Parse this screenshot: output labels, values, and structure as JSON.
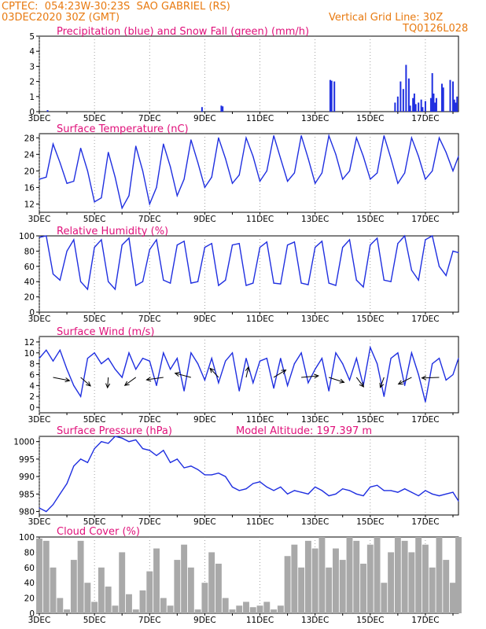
{
  "header": {
    "line1": "CPTEC:  054:23W-30:23S  SAO GABRIEL (RS)",
    "line2": "03DEC2020 30Z (GMT)",
    "grid_note": "Vertical Grid Line: 30Z",
    "code": "TQ0126L028"
  },
  "colors": {
    "header_text": "#e87a10",
    "panel_title": "#e0107a",
    "line": "#1f2fe0",
    "snow": "#10a010",
    "cloud": "#a9a9a9",
    "grid": "#8a8a8a",
    "wind_arrow": "#000000"
  },
  "x_axis": {
    "tick_labels": [
      "3DEC",
      "5DEC",
      "7DEC",
      "9DEC",
      "11DEC",
      "13DEC",
      "15DEC",
      "17DEC"
    ],
    "tick_days": [
      0,
      2,
      4,
      6,
      8,
      10,
      12,
      14
    ],
    "range_days": [
      0,
      15.2
    ]
  },
  "chart_data": [
    {
      "id": "precip",
      "type": "bar",
      "title": "Precipitation (blue) and Snow Fall (green) (mm/h)",
      "ylim": [
        0,
        5
      ],
      "yticks": [
        0,
        1,
        2,
        3,
        4,
        5
      ],
      "series": [
        {
          "name": "Precipitation",
          "color": "#1f2fe0",
          "x": [
            0.3,
            5.9,
            6.6,
            6.65,
            10.55,
            10.6,
            10.7,
            12.9,
            13.0,
            13.1,
            13.2,
            13.3,
            13.4,
            13.45,
            13.55,
            13.6,
            13.65,
            13.75,
            13.85,
            13.9,
            14.0,
            14.2,
            14.25,
            14.3,
            14.35,
            14.4,
            14.6,
            14.65,
            14.9,
            15.0,
            15.05,
            15.1,
            15.15
          ],
          "values": [
            0.1,
            0.3,
            0.4,
            0.35,
            2.1,
            2.05,
            2.0,
            0.6,
            1.0,
            2.0,
            1.5,
            3.1,
            2.2,
            0.4,
            0.9,
            1.2,
            0.5,
            0.6,
            0.8,
            0.3,
            0.7,
            0.9,
            2.55,
            1.2,
            0.6,
            0.9,
            1.85,
            1.6,
            2.1,
            2.0,
            0.8,
            0.6,
            1.0
          ]
        },
        {
          "name": "Snow Fall",
          "color": "#10a010",
          "x": [],
          "values": []
        }
      ]
    },
    {
      "id": "temperature",
      "type": "line",
      "title": "Surface Temperature (nC)",
      "ylim": [
        10,
        29
      ],
      "yticks": [
        12,
        16,
        20,
        24,
        28
      ],
      "x": [
        0,
        0.25,
        0.5,
        0.75,
        1.0,
        1.25,
        1.5,
        1.75,
        2.0,
        2.25,
        2.5,
        2.75,
        3.0,
        3.25,
        3.5,
        3.75,
        4.0,
        4.25,
        4.5,
        4.75,
        5.0,
        5.25,
        5.5,
        5.75,
        6.0,
        6.25,
        6.5,
        6.75,
        7.0,
        7.25,
        7.5,
        7.75,
        8.0,
        8.25,
        8.5,
        8.75,
        9.0,
        9.25,
        9.5,
        9.75,
        10.0,
        10.25,
        10.5,
        10.75,
        11.0,
        11.25,
        11.5,
        11.75,
        12.0,
        12.25,
        12.5,
        12.75,
        13.0,
        13.25,
        13.5,
        13.75,
        14.0,
        14.25,
        14.5,
        14.75,
        15.0,
        15.2
      ],
      "values": [
        18,
        18.5,
        26.5,
        22,
        17,
        17.5,
        25.5,
        20,
        12.5,
        13.5,
        24.5,
        18.5,
        11,
        14,
        26,
        20,
        12,
        16,
        26.5,
        21,
        14,
        18,
        27.5,
        22,
        16,
        18.5,
        28,
        23,
        17,
        19,
        28,
        23.5,
        17.5,
        20,
        28.5,
        23,
        17.5,
        19.5,
        28.5,
        23,
        17,
        19.5,
        28.5,
        24,
        18,
        20,
        28,
        23.5,
        18,
        19.5,
        28.5,
        23,
        17,
        19.5,
        28,
        23.5,
        18,
        20,
        28,
        24.5,
        20,
        23.5
      ]
    },
    {
      "id": "humidity",
      "type": "line",
      "title": "Relative Humidity (%)",
      "ylim": [
        0,
        100
      ],
      "yticks": [
        0,
        20,
        40,
        60,
        80,
        100
      ],
      "x": [
        0,
        0.25,
        0.5,
        0.75,
        1.0,
        1.25,
        1.5,
        1.75,
        2.0,
        2.25,
        2.5,
        2.75,
        3.0,
        3.25,
        3.5,
        3.75,
        4.0,
        4.25,
        4.5,
        4.75,
        5.0,
        5.25,
        5.5,
        5.75,
        6.0,
        6.25,
        6.5,
        6.75,
        7.0,
        7.25,
        7.5,
        7.75,
        8.0,
        8.25,
        8.5,
        8.75,
        9.0,
        9.25,
        9.5,
        9.75,
        10.0,
        10.25,
        10.5,
        10.75,
        11.0,
        11.25,
        11.5,
        11.75,
        12.0,
        12.25,
        12.5,
        12.75,
        13.0,
        13.25,
        13.5,
        13.75,
        14.0,
        14.25,
        14.5,
        14.75,
        15.0,
        15.2
      ],
      "values": [
        98,
        100,
        50,
        42,
        80,
        95,
        40,
        30,
        85,
        95,
        40,
        30,
        88,
        97,
        35,
        40,
        82,
        95,
        42,
        38,
        88,
        93,
        38,
        40,
        85,
        90,
        35,
        42,
        88,
        90,
        35,
        38,
        85,
        92,
        38,
        37,
        88,
        92,
        38,
        36,
        85,
        93,
        38,
        35,
        85,
        95,
        42,
        33,
        88,
        97,
        42,
        40,
        90,
        100,
        55,
        42,
        95,
        100,
        60,
        48,
        80,
        78
      ]
    },
    {
      "id": "wind",
      "type": "line",
      "title": "Surface Wind (m/s)",
      "ylim": [
        -1,
        13
      ],
      "yticks": [
        0,
        2,
        4,
        6,
        8,
        10,
        12
      ],
      "x": [
        0,
        0.25,
        0.5,
        0.75,
        1.0,
        1.25,
        1.5,
        1.75,
        2.0,
        2.25,
        2.5,
        2.75,
        3.0,
        3.25,
        3.5,
        3.75,
        4.0,
        4.25,
        4.5,
        4.75,
        5.0,
        5.25,
        5.5,
        5.75,
        6.0,
        6.25,
        6.5,
        6.75,
        7.0,
        7.25,
        7.5,
        7.75,
        8.0,
        8.25,
        8.5,
        8.75,
        9.0,
        9.25,
        9.5,
        9.75,
        10.0,
        10.25,
        10.5,
        10.75,
        11.0,
        11.25,
        11.5,
        11.75,
        12.0,
        12.25,
        12.5,
        12.75,
        13.0,
        13.25,
        13.5,
        13.75,
        14.0,
        14.25,
        14.5,
        14.75,
        15.0,
        15.2
      ],
      "values": [
        9,
        10.5,
        8.5,
        10.5,
        7,
        4,
        2,
        9,
        10,
        8,
        9,
        7,
        5.5,
        10,
        7,
        9,
        8.5,
        4,
        10,
        7,
        9,
        3,
        10,
        8,
        5,
        9,
        4.5,
        8.5,
        10,
        3,
        9,
        4.5,
        8.5,
        9,
        3.5,
        9,
        4,
        8,
        10,
        4.5,
        7,
        9,
        3,
        10,
        8,
        5,
        9,
        4,
        11,
        8,
        2,
        9,
        10,
        4,
        10,
        6,
        1,
        8,
        9,
        5,
        6,
        9
      ],
      "arrows_shown": true
    },
    {
      "id": "pressure",
      "type": "line",
      "title": "Surface Pressure (hPa)",
      "ylim": [
        979,
        1001.5
      ],
      "yticks": [
        980,
        985,
        990,
        995,
        1000
      ],
      "x": [
        0,
        0.25,
        0.5,
        0.75,
        1.0,
        1.25,
        1.5,
        1.75,
        2.0,
        2.25,
        2.5,
        2.75,
        3.0,
        3.25,
        3.5,
        3.75,
        4.0,
        4.25,
        4.5,
        4.75,
        5.0,
        5.25,
        5.5,
        5.75,
        6.0,
        6.25,
        6.5,
        6.75,
        7.0,
        7.25,
        7.5,
        7.75,
        8.0,
        8.25,
        8.5,
        8.75,
        9.0,
        9.25,
        9.5,
        9.75,
        10.0,
        10.25,
        10.5,
        10.75,
        11.0,
        11.25,
        11.5,
        11.75,
        12.0,
        12.25,
        12.5,
        12.75,
        13.0,
        13.25,
        13.5,
        13.75,
        14.0,
        14.25,
        14.5,
        14.75,
        15.0,
        15.2
      ],
      "values": [
        981,
        980,
        982,
        985,
        988,
        993,
        995,
        994,
        998,
        1000,
        999.5,
        1001.5,
        1001,
        1000,
        1000.5,
        998,
        997.5,
        996,
        997.5,
        994,
        995,
        992.5,
        993,
        992,
        990.5,
        990.5,
        991,
        990,
        987,
        986,
        986.5,
        988,
        988.5,
        987,
        986,
        987,
        985,
        986,
        985.5,
        985,
        987,
        986,
        984.5,
        985,
        986.5,
        986,
        985,
        984.5,
        987,
        987.5,
        986,
        986,
        985.5,
        986.5,
        985.5,
        984.5,
        986,
        985,
        984.5,
        985,
        985.5,
        983
      ]
    },
    {
      "id": "cloud",
      "type": "bar",
      "title": "Cloud Cover (%)",
      "ylim": [
        0,
        100
      ],
      "yticks": [
        0,
        20,
        40,
        60,
        80,
        100
      ],
      "x": [
        0,
        0.25,
        0.5,
        0.75,
        1.0,
        1.25,
        1.5,
        1.75,
        2.0,
        2.25,
        2.5,
        2.75,
        3.0,
        3.25,
        3.5,
        3.75,
        4.0,
        4.25,
        4.5,
        4.75,
        5.0,
        5.25,
        5.5,
        5.75,
        6.0,
        6.25,
        6.5,
        6.75,
        7.0,
        7.25,
        7.5,
        7.75,
        8.0,
        8.25,
        8.5,
        8.75,
        9.0,
        9.25,
        9.5,
        9.75,
        10.0,
        10.25,
        10.5,
        10.75,
        11.0,
        11.25,
        11.5,
        11.75,
        12.0,
        12.25,
        12.5,
        12.75,
        13.0,
        13.25,
        13.5,
        13.75,
        14.0,
        14.25,
        14.5,
        14.75,
        15.0,
        15.2
      ],
      "values": [
        98,
        95,
        60,
        20,
        5,
        70,
        95,
        40,
        15,
        60,
        35,
        10,
        80,
        25,
        5,
        30,
        55,
        85,
        20,
        10,
        70,
        90,
        60,
        5,
        40,
        80,
        65,
        20,
        5,
        10,
        15,
        8,
        10,
        15,
        5,
        10,
        75,
        90,
        60,
        95,
        85,
        100,
        60,
        85,
        70,
        100,
        95,
        65,
        90,
        100,
        40,
        80,
        100,
        95,
        80,
        100,
        90,
        60,
        100,
        70,
        40,
        100
      ]
    }
  ],
  "panel_titles": {
    "precip": "Precipitation (blue) and Snow Fall (green) (mm/h)",
    "temperature": "Surface Temperature (nC)",
    "humidity": "Relative Humidity (%)",
    "wind": "Surface Wind (m/s)",
    "pressure": "Surface Pressure (hPa)",
    "model_altitude": "Model Altitude: 197.397 m",
    "cloud": "Cloud Cover (%)"
  }
}
